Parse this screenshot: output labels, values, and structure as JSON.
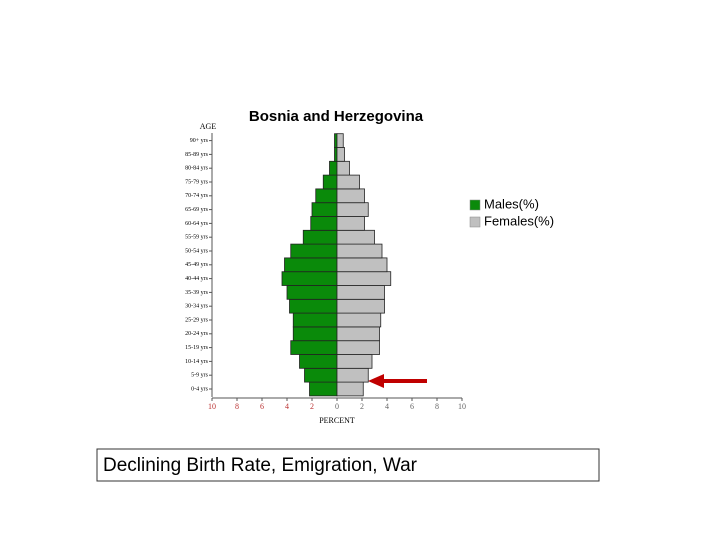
{
  "chart_data": {
    "type": "pyramid",
    "title": "Bosnia and Herzegovina",
    "y_label": "AGE",
    "x_label": "PERCENT",
    "categories": [
      "0-4 yrs",
      "5-9 yrs",
      "10-14 yrs",
      "15-19 yrs",
      "20-24 yrs",
      "25-29 yrs",
      "30-34 yrs",
      "35-39 yrs",
      "40-44 yrs",
      "45-49 yrs",
      "50-54 yrs",
      "55-59 yrs",
      "60-64 yrs",
      "65-69 yrs",
      "70-74 yrs",
      "75-79 yrs",
      "80-84 yrs",
      "85-89 yrs",
      "90+ yrs"
    ],
    "series": [
      {
        "name": "Males(%)",
        "color": "#0a8a0a",
        "values": [
          -2.2,
          -2.6,
          -3.0,
          -3.7,
          -3.5,
          -3.5,
          -3.8,
          -4.0,
          -4.4,
          -4.2,
          -3.7,
          -2.7,
          -2.1,
          -2.0,
          -1.7,
          -1.1,
          -0.6,
          -0.2,
          -0.2
        ]
      },
      {
        "name": "Females(%)",
        "color": "#c0c0c0",
        "values": [
          2.1,
          2.5,
          2.8,
          3.4,
          3.4,
          3.5,
          3.8,
          3.8,
          4.3,
          4.0,
          3.6,
          3.0,
          2.2,
          2.5,
          2.2,
          1.8,
          1.0,
          0.6,
          0.5
        ]
      }
    ],
    "xlim": [
      -10,
      10
    ],
    "xticks": [
      {
        "value": -10,
        "label": "10"
      },
      {
        "value": -8,
        "label": "8"
      },
      {
        "value": -6,
        "label": "6"
      },
      {
        "value": -4,
        "label": "4"
      },
      {
        "value": -2,
        "label": "2"
      },
      0,
      2,
      4,
      6,
      8,
      10
    ],
    "legend": "right"
  },
  "caption": "Declining Birth Rate, Emigration, War"
}
